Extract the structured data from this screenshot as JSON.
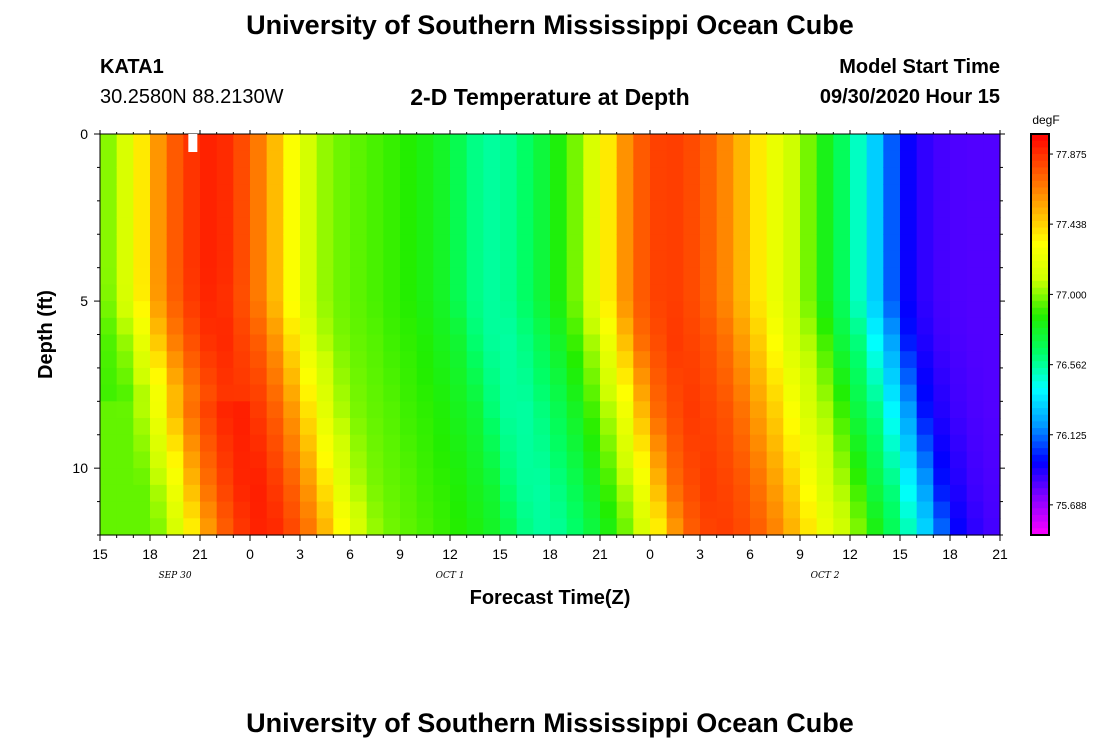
{
  "header": {
    "title": "University of Southern Mississippi Ocean Cube",
    "station": "KATA1",
    "coords": "30.2580N 88.2130W",
    "chart_title": "2-D Temperature at Depth",
    "model_label": "Model Start Time",
    "model_time": "09/30/2020 Hour 15"
  },
  "footer": {
    "title": "University of Southern Mississippi Ocean Cube"
  },
  "chart_data": {
    "type": "heatmap",
    "title": "2-D Temperature at Depth",
    "xlabel": "Forecast Time(Z)",
    "ylabel": "Depth (ft)",
    "x_hours": [
      0,
      1,
      2,
      3,
      4,
      5,
      6,
      7,
      8,
      9,
      10,
      11,
      12,
      13,
      14,
      15,
      16,
      17,
      18,
      19,
      20,
      21,
      22,
      23,
      24,
      25,
      26,
      27,
      28,
      29,
      30,
      31,
      32,
      33,
      34,
      35,
      36,
      37,
      38,
      39,
      40,
      41,
      42,
      43,
      44,
      45,
      46,
      47,
      48,
      49,
      50,
      51,
      52,
      53,
      54
    ],
    "xlim": [
      0,
      54
    ],
    "x_tick_labels": [
      "15",
      "18",
      "21",
      "0",
      "3",
      "6",
      "9",
      "12",
      "15",
      "18",
      "21",
      "0",
      "3",
      "6",
      "9",
      "12",
      "15",
      "18",
      "21"
    ],
    "date_labels": [
      {
        "hour": 4.5,
        "label": "SEP 30"
      },
      {
        "hour": 21,
        "label": "OCT 1"
      },
      {
        "hour": 43.5,
        "label": "OCT 2"
      }
    ],
    "depth_ft": [
      0,
      1,
      2,
      3,
      4,
      5,
      6,
      7,
      8,
      9,
      10,
      11,
      12
    ],
    "ylim": [
      0,
      12
    ],
    "y_tick_labels": [
      "0",
      "5",
      "10"
    ],
    "surface_profile": [
      76.95,
      77.05,
      77.25,
      77.5,
      77.7,
      77.82,
      77.9,
      77.92,
      77.85,
      77.75,
      77.6,
      77.4,
      77.2,
      77.05,
      76.98,
      76.95,
      76.93,
      76.9,
      76.88,
      76.85,
      76.8,
      76.75,
      76.62,
      76.56,
      76.55,
      76.6,
      76.68,
      76.78,
      76.9,
      77.05,
      77.25,
      77.5,
      77.72,
      77.8,
      77.85,
      77.82,
      77.78,
      77.7,
      77.58,
      77.45,
      77.3,
      77.15,
      77.05,
      76.9,
      76.72,
      76.6,
      76.4,
      76.2,
      75.98,
      75.9,
      75.85,
      75.83,
      75.82,
      75.82,
      75.82
    ],
    "value_min": 75.5,
    "value_max": 78.0,
    "colorbar": {
      "unit": "degF",
      "tick_values": [
        75.688,
        76.125,
        76.562,
        77.0,
        77.438,
        77.875
      ],
      "tick_labels": [
        "75.688",
        "76.125",
        "76.562",
        "77.000",
        "77.438",
        "77.875"
      ],
      "colors": [
        "#ff00ff",
        "#8800ff",
        "#0000ff",
        "#0099ff",
        "#00ffff",
        "#00ff66",
        "#22ee00",
        "#ccff00",
        "#ffff00",
        "#ffaa00",
        "#ff5500",
        "#ff0000"
      ]
    }
  }
}
